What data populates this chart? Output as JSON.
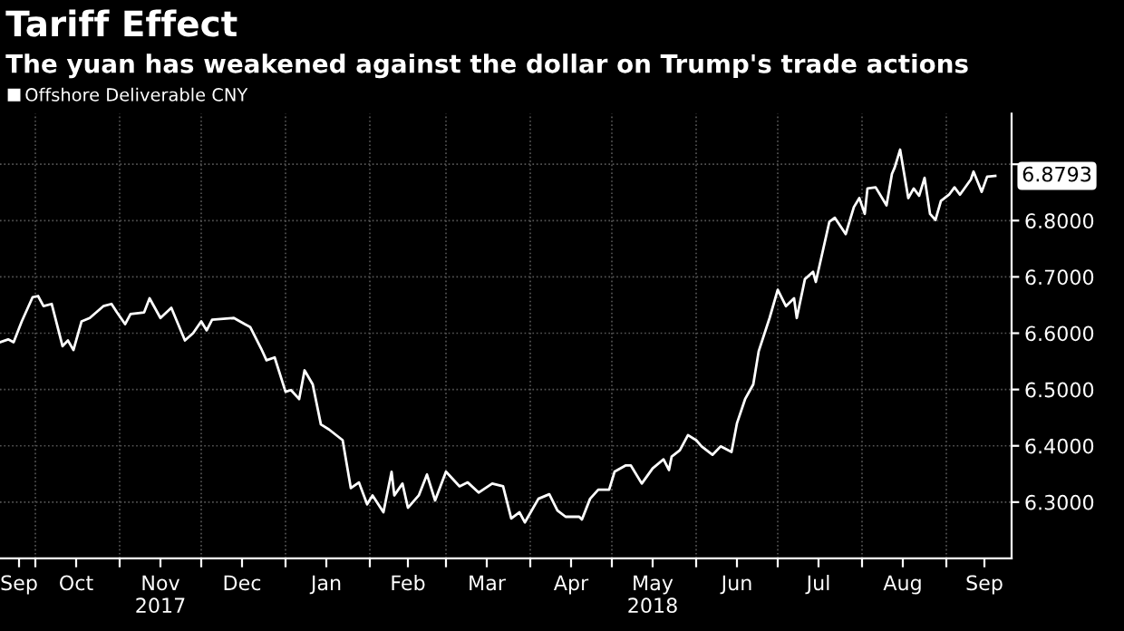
{
  "chart_data": {
    "type": "line",
    "title": "Tariff Effect",
    "subtitle": "The yuan has weakened against the dollar on Trump's trade actions",
    "x": [
      "2017-09-18",
      "2017-09-21",
      "2017-09-23",
      "2017-09-26",
      "2017-09-30",
      "2017-10-02",
      "2017-10-04",
      "2017-10-07",
      "2017-10-11",
      "2017-10-13",
      "2017-10-15",
      "2017-10-18",
      "2017-10-21",
      "2017-10-26",
      "2017-10-29",
      "2017-10-31",
      "2017-11-03",
      "2017-11-05",
      "2017-11-10",
      "2017-11-12",
      "2017-11-16",
      "2017-11-20",
      "2017-11-25",
      "2017-11-28",
      "2017-12-01",
      "2017-12-03",
      "2017-12-05",
      "2017-12-13",
      "2017-12-17",
      "2017-12-19",
      "2017-12-23",
      "2017-12-25",
      "2017-12-28",
      "2018-01-01",
      "2018-01-03",
      "2018-01-06",
      "2018-01-08",
      "2018-01-11",
      "2018-01-14",
      "2018-01-17",
      "2018-01-22",
      "2018-01-25",
      "2018-01-28",
      "2018-01-31",
      "2018-02-02",
      "2018-02-06",
      "2018-02-09",
      "2018-02-10",
      "2018-02-13",
      "2018-02-15",
      "2018-02-19",
      "2018-02-22",
      "2018-02-25",
      "2018-03-01",
      "2018-03-06",
      "2018-03-09",
      "2018-03-13",
      "2018-03-18",
      "2018-03-22",
      "2018-03-25",
      "2018-03-28",
      "2018-03-30",
      "2018-04-04",
      "2018-04-08",
      "2018-04-11",
      "2018-04-14",
      "2018-04-19",
      "2018-04-20",
      "2018-04-23",
      "2018-04-26",
      "2018-04-30",
      "2018-05-02",
      "2018-05-06",
      "2018-05-08",
      "2018-05-12",
      "2018-05-16",
      "2018-05-20",
      "2018-05-22",
      "2018-05-23",
      "2018-05-26",
      "2018-05-29",
      "2018-06-01",
      "2018-06-03",
      "2018-06-07",
      "2018-06-10",
      "2018-06-14",
      "2018-06-16",
      "2018-06-19",
      "2018-06-22",
      "2018-06-24",
      "2018-06-28",
      "2018-07-01",
      "2018-07-04",
      "2018-07-07",
      "2018-07-08",
      "2018-07-11",
      "2018-07-14",
      "2018-07-15",
      "2018-07-20",
      "2018-07-22",
      "2018-07-26",
      "2018-07-29",
      "2018-07-31",
      "2018-08-02",
      "2018-08-03",
      "2018-08-06",
      "2018-08-10",
      "2018-08-12",
      "2018-08-13",
      "2018-08-15",
      "2018-08-18",
      "2018-08-20",
      "2018-08-22",
      "2018-08-24",
      "2018-08-26",
      "2018-08-28",
      "2018-08-30",
      "2018-09-02",
      "2018-09-04",
      "2018-09-06",
      "2018-09-10",
      "2018-09-11",
      "2018-09-14",
      "2018-09-16",
      "2018-09-19"
    ],
    "series": [
      {
        "name": "Offshore Deliverable CNY",
        "color": "#ffffff",
        "values": [
          6.584,
          6.589,
          6.584,
          6.621,
          6.664,
          6.666,
          6.648,
          6.652,
          6.577,
          6.587,
          6.57,
          6.621,
          6.627,
          6.648,
          6.652,
          6.637,
          6.616,
          6.634,
          6.637,
          6.662,
          6.627,
          6.645,
          6.587,
          6.6,
          6.621,
          6.605,
          6.624,
          6.627,
          6.616,
          6.611,
          6.573,
          6.552,
          6.557,
          6.496,
          6.499,
          6.483,
          6.534,
          6.509,
          6.438,
          6.429,
          6.41,
          6.325,
          6.335,
          6.296,
          6.312,
          6.282,
          6.354,
          6.312,
          6.333,
          6.29,
          6.312,
          6.349,
          6.303,
          6.354,
          6.328,
          6.335,
          6.317,
          6.333,
          6.328,
          6.271,
          6.282,
          6.264,
          6.306,
          6.314,
          6.285,
          6.274,
          6.274,
          6.269,
          6.306,
          6.322,
          6.322,
          6.354,
          6.365,
          6.365,
          6.333,
          6.36,
          6.376,
          6.357,
          6.381,
          6.392,
          6.419,
          6.41,
          6.399,
          6.384,
          6.399,
          6.389,
          6.44,
          6.483,
          6.509,
          6.568,
          6.627,
          6.677,
          6.648,
          6.662,
          6.627,
          6.696,
          6.709,
          6.691,
          6.798,
          6.805,
          6.776,
          6.824,
          6.84,
          6.812,
          6.857,
          6.859,
          6.827,
          6.883,
          6.894,
          6.926,
          6.84,
          6.857,
          6.844,
          6.876,
          6.812,
          6.801,
          6.835,
          6.846,
          6.859,
          6.846,
          6.873,
          6.887,
          6.851,
          6.878,
          6.8793
        ]
      }
    ],
    "annotations": [
      {
        "text": "6.8793",
        "x": "2018-09-19",
        "y": 6.8793
      }
    ],
    "xlim": [
      "2017-09-18",
      "2018-09-25"
    ],
    "xticks": [
      {
        "value": "2017-09-25",
        "label": "Sep"
      },
      {
        "value": "2017-10-01",
        "label": null
      },
      {
        "value": "2017-10-16",
        "label": "Oct"
      },
      {
        "value": "2017-11-01",
        "label": null
      },
      {
        "value": "2017-11-16",
        "label": "Nov\n2017"
      },
      {
        "value": "2017-12-01",
        "label": null
      },
      {
        "value": "2017-12-16",
        "label": "Dec"
      },
      {
        "value": "2018-01-01",
        "label": null
      },
      {
        "value": "2018-01-16",
        "label": "Jan"
      },
      {
        "value": "2018-02-01",
        "label": null
      },
      {
        "value": "2018-02-15",
        "label": "Feb"
      },
      {
        "value": "2018-03-01",
        "label": null
      },
      {
        "value": "2018-03-16",
        "label": "Mar"
      },
      {
        "value": "2018-04-01",
        "label": null
      },
      {
        "value": "2018-04-16",
        "label": "Apr"
      },
      {
        "value": "2018-05-01",
        "label": null
      },
      {
        "value": "2018-05-16",
        "label": "May\n2018"
      },
      {
        "value": "2018-06-01",
        "label": null
      },
      {
        "value": "2018-06-16",
        "label": "Jun"
      },
      {
        "value": "2018-07-01",
        "label": null
      },
      {
        "value": "2018-07-16",
        "label": "Jul"
      },
      {
        "value": "2018-08-01",
        "label": null
      },
      {
        "value": "2018-08-16",
        "label": "Aug"
      },
      {
        "value": "2018-09-01",
        "label": null
      },
      {
        "value": "2018-09-15",
        "label": "Sep"
      }
    ],
    "ylim": [
      6.2,
      6.99
    ],
    "yticks": [
      {
        "value": 6.3,
        "label": "6.3000"
      },
      {
        "value": 6.4,
        "label": "6.4000"
      },
      {
        "value": 6.5,
        "label": "6.5000"
      },
      {
        "value": 6.6,
        "label": "6.6000"
      },
      {
        "value": 6.7,
        "label": "6.7000"
      },
      {
        "value": 6.8,
        "label": "6.8000"
      },
      {
        "value": 6.9,
        "label": null
      }
    ],
    "grid": true,
    "legend": "top left",
    "marker": "none",
    "line_style": "solid"
  }
}
